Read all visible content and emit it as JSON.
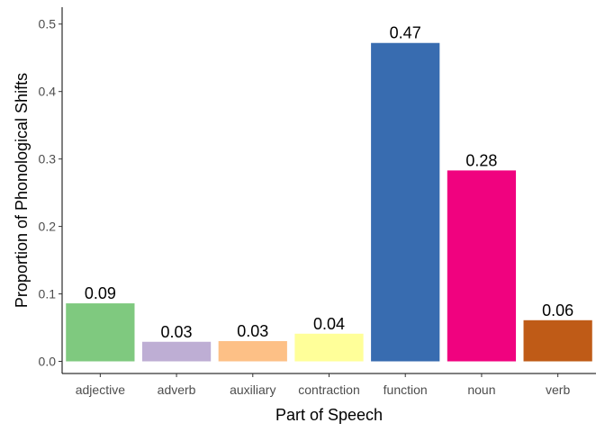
{
  "chart_data": {
    "type": "bar",
    "title": "",
    "xlabel": "Part of Speech",
    "ylabel": "Proportion of Phonological Shifts",
    "categories": [
      "adjective",
      "adverb",
      "auxiliary",
      "contraction",
      "function",
      "noun",
      "verb"
    ],
    "values": [
      0.086,
      0.029,
      0.03,
      0.041,
      0.472,
      0.283,
      0.061
    ],
    "data_labels": [
      "0.09",
      "0.03",
      "0.03",
      "0.04",
      "0.47",
      "0.28",
      "0.06"
    ],
    "colors": [
      "#7FC97F",
      "#BEAED4",
      "#FDC086",
      "#FFFF99",
      "#386CB0",
      "#F0027F",
      "#BF5B17"
    ],
    "yticks": [
      0.0,
      0.1,
      0.2,
      0.3,
      0.4,
      0.5
    ],
    "ytick_labels": [
      "0.0",
      "0.1",
      "0.2",
      "0.3",
      "0.4",
      "0.5"
    ],
    "ylim": [
      -0.018,
      0.525
    ],
    "grid": false,
    "legend": "none"
  }
}
